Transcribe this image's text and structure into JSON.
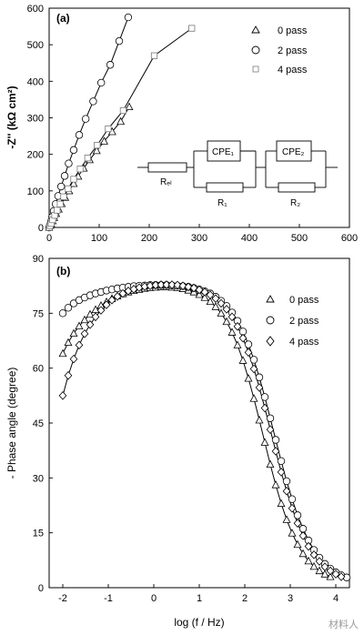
{
  "watermark": "材料人",
  "chart_data": [
    {
      "panel": "(a)",
      "type": "scatter",
      "xlabel": "",
      "ylabel": "-Z'' (kΩ cm²)",
      "xlim": [
        0,
        600
      ],
      "ylim": [
        0,
        600
      ],
      "xticks": [
        0,
        100,
        200,
        300,
        400,
        500,
        600
      ],
      "yticks": [
        0,
        100,
        200,
        300,
        400,
        500,
        600
      ],
      "legend_position": "top-right",
      "series": [
        {
          "name": "0 pass",
          "marker": "triangle",
          "x": [
            0,
            2,
            4,
            7,
            10,
            14,
            19,
            25,
            32,
            40,
            49,
            58,
            69,
            81,
            95,
            110,
            126,
            143,
            160
          ],
          "y": [
            0,
            5,
            10,
            18,
            27,
            38,
            50,
            65,
            82,
            100,
            120,
            140,
            162,
            185,
            210,
            236,
            262,
            290,
            330
          ]
        },
        {
          "name": "2 pass",
          "marker": "circle",
          "x": [
            0,
            2,
            4,
            6,
            9,
            13,
            18,
            24,
            31,
            39,
            49,
            60,
            73,
            88,
            104,
            122,
            140,
            158
          ],
          "y": [
            0,
            8,
            17,
            29,
            45,
            64,
            86,
            112,
            141,
            175,
            212,
            253,
            297,
            345,
            396,
            445,
            510,
            575
          ]
        },
        {
          "name": "4 pass",
          "marker": "square",
          "x": [
            0,
            2,
            4,
            7,
            11,
            16,
            22,
            29,
            38,
            49,
            62,
            77,
            96,
            118,
            148,
            210,
            285
          ],
          "y": [
            0,
            5,
            11,
            21,
            33,
            47,
            64,
            84,
            106,
            132,
            160,
            190,
            225,
            270,
            320,
            470,
            545
          ]
        }
      ],
      "circuit": {
        "labels": [
          "Rₑₗ",
          "CPE₁",
          "R₁",
          "CPE₂",
          "R₂"
        ]
      }
    },
    {
      "panel": "(b)",
      "type": "scatter",
      "xlabel": "log (f / Hz)",
      "ylabel": "- Phase angle (degree)",
      "xlim": [
        -2.3,
        4.3
      ],
      "ylim": [
        0,
        90
      ],
      "xticks": [
        -2,
        -1,
        0,
        1,
        2,
        3,
        4
      ],
      "yticks": [
        0,
        15,
        30,
        45,
        60,
        75,
        90
      ],
      "legend_position": "top-right",
      "series": [
        {
          "name": "0 pass",
          "marker": "triangle",
          "x0": -2.0,
          "dx": 0.12,
          "y": [
            64,
            67,
            69.5,
            71.5,
            73.2,
            74.7,
            76,
            77.1,
            78.1,
            79,
            79.7,
            80.3,
            80.8,
            81.2,
            81.5,
            81.8,
            82,
            82.1,
            82.2,
            82.2,
            82.1,
            82,
            81.7,
            81.3,
            80.8,
            80.1,
            79.3,
            78.2,
            76.8,
            75,
            72.7,
            69.8,
            66.3,
            62.1,
            57.2,
            51.7,
            45.8,
            39.7,
            33.7,
            28.1,
            23,
            18.6,
            14.9,
            11.8,
            9.3,
            7.3,
            5.8,
            4.6,
            3.7,
            3
          ]
        },
        {
          "name": "2 pass",
          "marker": "circle",
          "x0": -2.0,
          "dx": 0.12,
          "y": [
            75,
            76.5,
            77.7,
            78.6,
            79.3,
            79.9,
            80.4,
            80.8,
            81.2,
            81.5,
            81.8,
            82,
            82.2,
            82.4,
            82.5,
            82.6,
            82.7,
            82.7,
            82.7,
            82.7,
            82.6,
            82.5,
            82.4,
            82.2,
            81.9,
            81.5,
            81,
            80.4,
            79.5,
            78.4,
            77,
            75.2,
            72.9,
            70,
            66.5,
            62.3,
            57.5,
            52.1,
            46.3,
            40.4,
            34.6,
            29.1,
            24.2,
            19.8,
            16.1,
            12.9,
            10.3,
            8.2,
            6.5,
            5.2,
            4.2,
            3.4,
            2.8
          ]
        },
        {
          "name": "4 pass",
          "marker": "diamond",
          "x0": -2.0,
          "dx": 0.12,
          "y": [
            52.5,
            58,
            62.5,
            66.3,
            69.4,
            71.9,
            74,
            75.8,
            77.3,
            78.6,
            79.6,
            80.4,
            81.1,
            81.6,
            82,
            82.3,
            82.5,
            82.7,
            82.8,
            82.8,
            82.8,
            82.7,
            82.5,
            82.2,
            81.9,
            81.4,
            80.8,
            80,
            79,
            77.7,
            76.1,
            74,
            71.4,
            68.2,
            64.3,
            59.8,
            54.7,
            49.1,
            43.2,
            37.3,
            31.6,
            26.4,
            21.7,
            17.6,
            14.2,
            11.3,
            9,
            7.2,
            5.7,
            4.6,
            3.7,
            3
          ]
        }
      ]
    }
  ]
}
